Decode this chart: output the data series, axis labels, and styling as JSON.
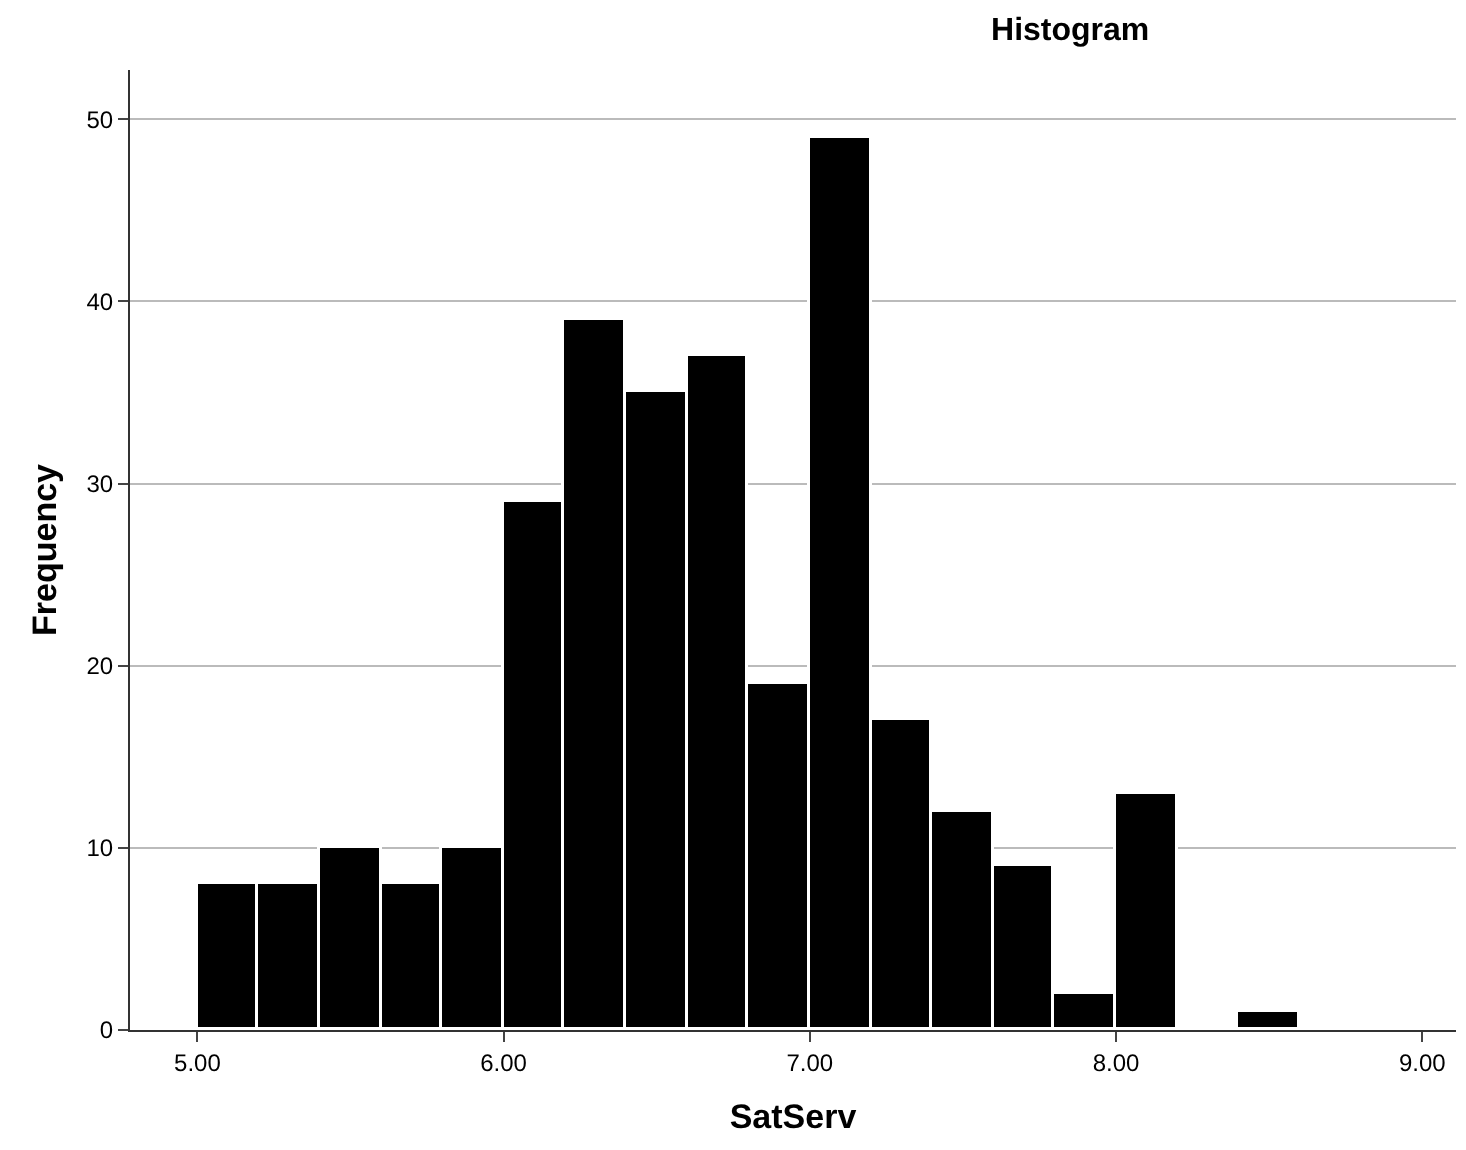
{
  "chart_data": {
    "type": "histogram",
    "title": "Histogram",
    "xlabel": "SatServ",
    "ylabel": "Frequency",
    "bins": [
      5.0,
      5.2,
      5.4,
      5.6,
      5.8,
      6.0,
      6.2,
      6.4,
      6.6,
      6.8,
      7.0,
      7.2,
      7.4,
      7.6,
      7.8,
      8.0,
      8.2,
      8.4,
      8.6
    ],
    "values": [
      8,
      8,
      10,
      8,
      10,
      29,
      39,
      35,
      37,
      19,
      49,
      17,
      12,
      9,
      2,
      13,
      0,
      1
    ],
    "color": "#000000",
    "xlim": [
      4.78,
      9.11
    ],
    "xticks": [
      {
        "value": 5,
        "label": "5.00"
      },
      {
        "value": 6,
        "label": "6.00"
      },
      {
        "value": 7,
        "label": "7.00"
      },
      {
        "value": 8,
        "label": "8.00"
      },
      {
        "value": 9,
        "label": "9.00"
      }
    ],
    "ylim": [
      0,
      52.7
    ],
    "yticks": [
      0,
      10,
      20,
      30,
      40,
      50
    ],
    "grid": "y"
  }
}
